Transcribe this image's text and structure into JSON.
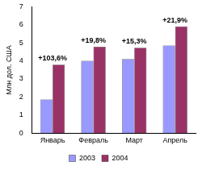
{
  "chart_data": {
    "type": "bar",
    "y_label": "Млн дол. США",
    "categories": [
      "Январь",
      "Февраль",
      "Март",
      "Апрель"
    ],
    "series": [
      {
        "name": "2003",
        "color": "#9999ff",
        "values": [
          1.86,
          4.0,
          4.1,
          4.85
        ]
      },
      {
        "name": "2004",
        "color": "#993366",
        "values": [
          3.79,
          4.79,
          4.73,
          5.91
        ]
      }
    ],
    "annotations": [
      "+103,6%",
      "+19,8%",
      "+15,3%",
      "+21,9%"
    ],
    "ylim": [
      0,
      7
    ],
    "yticks": [
      0,
      1,
      2,
      3,
      4,
      5,
      6,
      7
    ],
    "grid": false,
    "legend": "bottom"
  }
}
